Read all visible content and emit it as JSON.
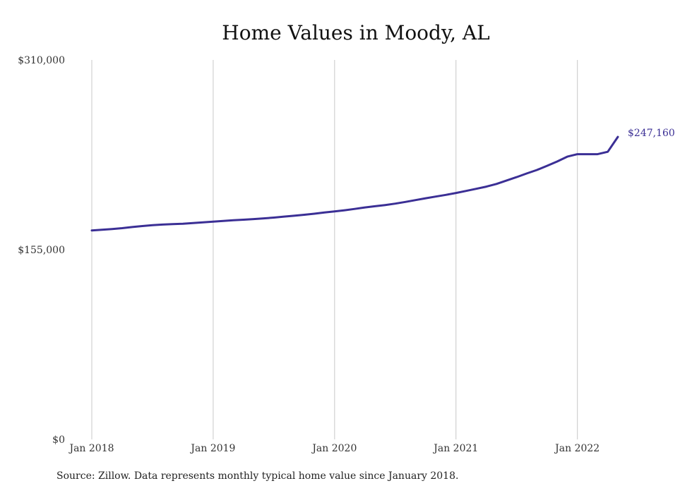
{
  "chart_data": {
    "type": "line",
    "title": "Home Values in Moody, AL",
    "xlabel": "",
    "ylabel": "",
    "x_range": [
      "2018-01",
      "2022-05"
    ],
    "ylim": [
      0,
      310000
    ],
    "y_ticks": [
      0,
      155000,
      310000
    ],
    "y_tick_labels": [
      "$0",
      "$155,000",
      "$310,000"
    ],
    "x_ticks": [
      "2018-01",
      "2019-01",
      "2020-01",
      "2021-01",
      "2022-01"
    ],
    "x_tick_labels": [
      "Jan 2018",
      "Jan 2019",
      "Jan 2020",
      "Jan 2021",
      "Jan 2022"
    ],
    "grid": "vertical",
    "line_color": "#3b2f95",
    "series": [
      {
        "x": [
          "2018-01",
          "2018-02",
          "2018-03",
          "2018-04",
          "2018-05",
          "2018-06",
          "2018-07",
          "2018-08",
          "2018-09",
          "2018-10",
          "2018-11",
          "2018-12",
          "2019-01",
          "2019-02",
          "2019-03",
          "2019-04",
          "2019-05",
          "2019-06",
          "2019-07",
          "2019-08",
          "2019-09",
          "2019-10",
          "2019-11",
          "2019-12",
          "2020-01",
          "2020-02",
          "2020-03",
          "2020-04",
          "2020-05",
          "2020-06",
          "2020-07",
          "2020-08",
          "2020-09",
          "2020-10",
          "2020-11",
          "2020-12",
          "2021-01",
          "2021-02",
          "2021-03",
          "2021-04",
          "2021-05",
          "2021-06",
          "2021-07",
          "2021-08",
          "2021-09",
          "2021-10",
          "2021-11",
          "2021-12",
          "2022-01",
          "2022-02",
          "2022-03",
          "2022-04",
          "2022-05"
        ],
        "values": [
          170700,
          171300,
          171900,
          172600,
          173500,
          174300,
          175000,
          175500,
          175900,
          176200,
          176700,
          177300,
          177900,
          178500,
          179000,
          179500,
          180000,
          180600,
          181200,
          182000,
          182700,
          183500,
          184400,
          185400,
          186300,
          187200,
          188300,
          189500,
          190500,
          191500,
          192600,
          194000,
          195500,
          197000,
          198400,
          199800,
          201300,
          203000,
          204700,
          206500,
          208700,
          211500,
          214300,
          217300,
          220100,
          223500,
          227000,
          231000,
          233000,
          233000,
          233000,
          235000,
          247160
        ]
      }
    ],
    "annotations": [
      {
        "text": "$247,160",
        "x": "2022-05",
        "y": 247160
      }
    ]
  },
  "source_note": "Source: Zillow. Data represents monthly typical home value since January 2018."
}
